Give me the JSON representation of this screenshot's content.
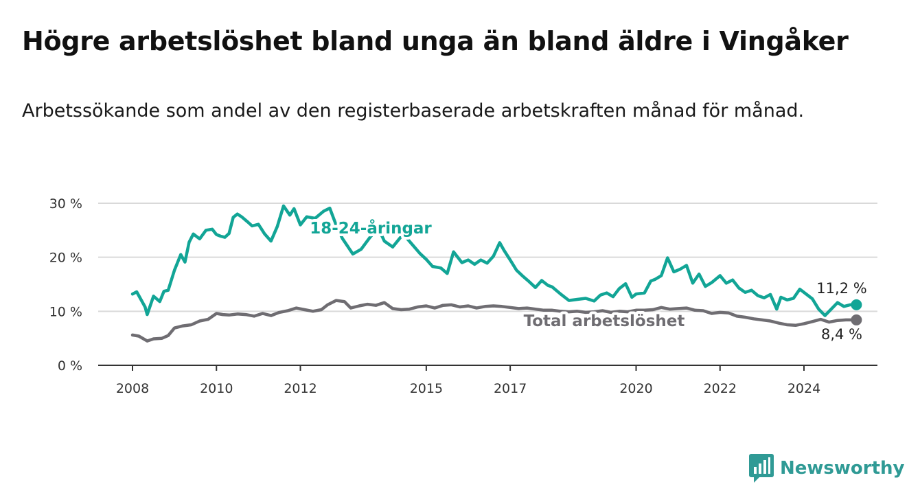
{
  "title": "Högre arbetslöshet bland unga än bland äldre i Vingåker",
  "subtitle": "Arbetssökande som andel av den registerbaserade arbetskraften månad för månad.",
  "brand": "Newsworthy",
  "colors": {
    "youth": "#12a596",
    "total": "#6f6d72",
    "grid": "#d9d9d9",
    "axis": "#333333",
    "brand": "#2f9a95"
  },
  "chart_data": {
    "type": "line",
    "ylim": [
      0,
      30
    ],
    "yticks": [
      0,
      10,
      20,
      30
    ],
    "ytick_labels": [
      "0 %",
      "10 %",
      "20 %",
      "30 %"
    ],
    "xlim": [
      2008.0,
      2025.75
    ],
    "xticks": [
      2008,
      2010,
      2012,
      2015,
      2017,
      2020,
      2022,
      2024
    ],
    "xtick_labels": [
      "2008",
      "2010",
      "2012",
      "2015",
      "2017",
      "2020",
      "2022",
      "2024"
    ],
    "grid": true,
    "series": [
      {
        "name": "18-24-åringar",
        "color": "#12a596",
        "end_label": "11,2 %",
        "x": [
          2008.0,
          2008.1,
          2008.3,
          2008.35,
          2008.5,
          2008.65,
          2008.75,
          2008.85,
          2009.0,
          2009.15,
          2009.25,
          2009.35,
          2009.45,
          2009.6,
          2009.75,
          2009.9,
          2010.0,
          2010.1,
          2010.2,
          2010.3,
          2010.4,
          2010.5,
          2010.6,
          2010.75,
          2010.85,
          2011.0,
          2011.15,
          2011.3,
          2011.45,
          2011.6,
          2011.75,
          2011.85,
          2012.0,
          2012.15,
          2012.35,
          2012.55,
          2012.7,
          2012.85,
          2013.0,
          2013.25,
          2013.45,
          2013.65,
          2013.85,
          2014.0,
          2014.2,
          2014.45,
          2014.65,
          2014.85,
          2015.0,
          2015.15,
          2015.35,
          2015.5,
          2015.65,
          2015.85,
          2016.0,
          2016.15,
          2016.3,
          2016.45,
          2016.6,
          2016.75,
          2016.85,
          2017.0,
          2017.15,
          2017.3,
          2017.45,
          2017.6,
          2017.75,
          2017.9,
          2018.0,
          2018.2,
          2018.4,
          2018.6,
          2018.8,
          2019.0,
          2019.15,
          2019.3,
          2019.45,
          2019.6,
          2019.75,
          2019.9,
          2020.0,
          2020.2,
          2020.35,
          2020.45,
          2020.6,
          2020.75,
          2020.9,
          2021.05,
          2021.2,
          2021.35,
          2021.5,
          2021.65,
          2021.8,
          2022.0,
          2022.15,
          2022.3,
          2022.45,
          2022.6,
          2022.75,
          2022.9,
          2023.05,
          2023.2,
          2023.35,
          2023.45,
          2023.6,
          2023.75,
          2023.9,
          2024.05,
          2024.2,
          2024.35,
          2024.5,
          2024.65,
          2024.8,
          2024.95,
          2025.1,
          2025.25
        ],
        "y": [
          13.2,
          13.6,
          10.8,
          9.4,
          12.8,
          11.8,
          13.7,
          13.9,
          17.6,
          20.5,
          19.1,
          22.8,
          24.3,
          23.4,
          25.0,
          25.2,
          24.2,
          23.9,
          23.7,
          24.4,
          27.4,
          28.0,
          27.5,
          26.5,
          25.8,
          26.1,
          24.3,
          23.0,
          25.7,
          29.5,
          27.8,
          29.0,
          26.0,
          27.5,
          27.2,
          28.5,
          29.1,
          26.0,
          23.5,
          20.6,
          21.5,
          23.6,
          25.5,
          23.0,
          21.9,
          24.3,
          22.5,
          20.7,
          19.6,
          18.3,
          18.0,
          17.0,
          21.0,
          19.0,
          19.5,
          18.7,
          19.5,
          18.9,
          20.2,
          22.7,
          21.3,
          19.5,
          17.6,
          16.5,
          15.5,
          14.4,
          15.7,
          14.8,
          14.5,
          13.2,
          12.0,
          12.2,
          12.4,
          11.9,
          13.0,
          13.4,
          12.7,
          14.2,
          15.1,
          12.6,
          13.2,
          13.4,
          15.6,
          15.9,
          16.6,
          19.9,
          17.3,
          17.8,
          18.5,
          15.2,
          16.9,
          14.6,
          15.3,
          16.6,
          15.2,
          15.8,
          14.3,
          13.5,
          13.9,
          12.9,
          12.5,
          13.1,
          10.4,
          12.6,
          12.1,
          12.4,
          14.1,
          13.2,
          12.3,
          10.4,
          9.2,
          10.4,
          11.6,
          10.9,
          11.2,
          11.2
        ]
      },
      {
        "name": "Total arbetslöshet",
        "color": "#6f6d72",
        "end_label": "8,4 %",
        "x": [
          2008.0,
          2008.15,
          2008.35,
          2008.5,
          2008.7,
          2008.85,
          2009.0,
          2009.2,
          2009.4,
          2009.6,
          2009.8,
          2010.0,
          2010.15,
          2010.3,
          2010.5,
          2010.7,
          2010.9,
          2011.1,
          2011.3,
          2011.5,
          2011.7,
          2011.9,
          2012.1,
          2012.3,
          2012.5,
          2012.65,
          2012.85,
          2013.05,
          2013.2,
          2013.4,
          2013.6,
          2013.8,
          2014.0,
          2014.2,
          2014.4,
          2014.6,
          2014.8,
          2015.0,
          2015.2,
          2015.4,
          2015.6,
          2015.8,
          2016.0,
          2016.2,
          2016.4,
          2016.6,
          2016.8,
          2017.0,
          2017.2,
          2017.4,
          2017.6,
          2017.8,
          2018.0,
          2018.2,
          2018.4,
          2018.6,
          2018.8,
          2019.0,
          2019.2,
          2019.4,
          2019.6,
          2019.8,
          2020.0,
          2020.2,
          2020.4,
          2020.6,
          2020.8,
          2021.0,
          2021.2,
          2021.4,
          2021.6,
          2021.8,
          2022.0,
          2022.2,
          2022.4,
          2022.6,
          2022.8,
          2023.0,
          2023.2,
          2023.4,
          2023.6,
          2023.8,
          2024.0,
          2024.2,
          2024.4,
          2024.6,
          2024.8,
          2025.0,
          2025.25
        ],
        "y": [
          5.6,
          5.4,
          4.5,
          4.9,
          5.0,
          5.5,
          6.9,
          7.3,
          7.5,
          8.2,
          8.5,
          9.6,
          9.4,
          9.3,
          9.5,
          9.4,
          9.1,
          9.6,
          9.2,
          9.8,
          10.1,
          10.6,
          10.3,
          10.0,
          10.3,
          11.2,
          12.0,
          11.8,
          10.6,
          11.0,
          11.3,
          11.1,
          11.6,
          10.5,
          10.3,
          10.4,
          10.8,
          11.0,
          10.6,
          11.1,
          11.2,
          10.8,
          11.0,
          10.6,
          10.9,
          11.0,
          10.9,
          10.7,
          10.5,
          10.6,
          10.4,
          10.2,
          10.2,
          10.0,
          9.9,
          10.0,
          9.8,
          9.9,
          10.1,
          9.8,
          10.0,
          9.9,
          10.2,
          10.2,
          10.3,
          10.7,
          10.4,
          10.5,
          10.6,
          10.2,
          10.1,
          9.6,
          9.8,
          9.7,
          9.1,
          8.9,
          8.6,
          8.4,
          8.2,
          7.8,
          7.5,
          7.4,
          7.7,
          8.1,
          8.5,
          8.0,
          8.3,
          8.4,
          8.4
        ]
      }
    ]
  }
}
